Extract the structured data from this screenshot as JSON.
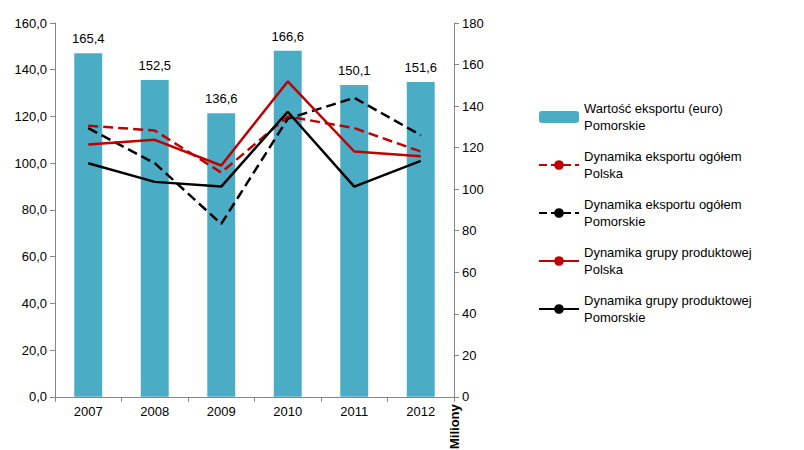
{
  "chart_data": {
    "type": "bar",
    "categories": [
      "2007",
      "2008",
      "2009",
      "2010",
      "2011",
      "2012"
    ],
    "ylim": [
      0,
      160
    ],
    "yticks": [
      {
        "value": 0,
        "label": "0,0"
      },
      {
        "value": 20,
        "label": "20,0"
      },
      {
        "value": 40,
        "label": "40,0"
      },
      {
        "value": 60,
        "label": "60,0"
      },
      {
        "value": 80,
        "label": "80,0"
      },
      {
        "value": 100,
        "label": "100,0"
      },
      {
        "value": 120,
        "label": "120,0"
      },
      {
        "value": 140,
        "label": "140,0"
      },
      {
        "value": 160,
        "label": "160,0"
      }
    ],
    "y2lim": [
      0,
      180
    ],
    "y2ticks": [
      0,
      20,
      40,
      60,
      80,
      100,
      120,
      140,
      160,
      180
    ],
    "y2label": "Miliony",
    "grid": false,
    "legend": "right",
    "series": [
      {
        "name": "Wartość eksportu (euro) Pomorskie",
        "type": "bar",
        "axis": "y2",
        "color": "#4BACC6",
        "values": [
          165.4,
          152.5,
          136.6,
          166.6,
          150.1,
          151.6
        ],
        "value_labels": [
          "165,4",
          "152,5",
          "136,6",
          "166,6",
          "150,1",
          "151,6"
        ],
        "data_labels": true
      },
      {
        "name": "Dynamika eksportu ogółem Polska",
        "type": "line",
        "color": "#C00000",
        "line_style": "dashed",
        "values": [
          116,
          114,
          96,
          120,
          115,
          105
        ]
      },
      {
        "name": "Dynamika eksportu ogółem Pomorskie",
        "type": "line",
        "color": "#000000",
        "line_style": "dashed",
        "values": [
          115,
          100,
          74,
          119,
          128,
          112
        ]
      },
      {
        "name": "Dynamika grupy produktowej Polska",
        "type": "line",
        "color": "#C00000",
        "line_style": "solid",
        "values": [
          108,
          110,
          99,
          135,
          105,
          103
        ]
      },
      {
        "name": "Dynamika grupy produktowej Pomorskie",
        "type": "line",
        "color": "#000000",
        "line_style": "solid",
        "values": [
          100,
          92,
          90,
          122,
          90,
          101
        ]
      }
    ]
  }
}
